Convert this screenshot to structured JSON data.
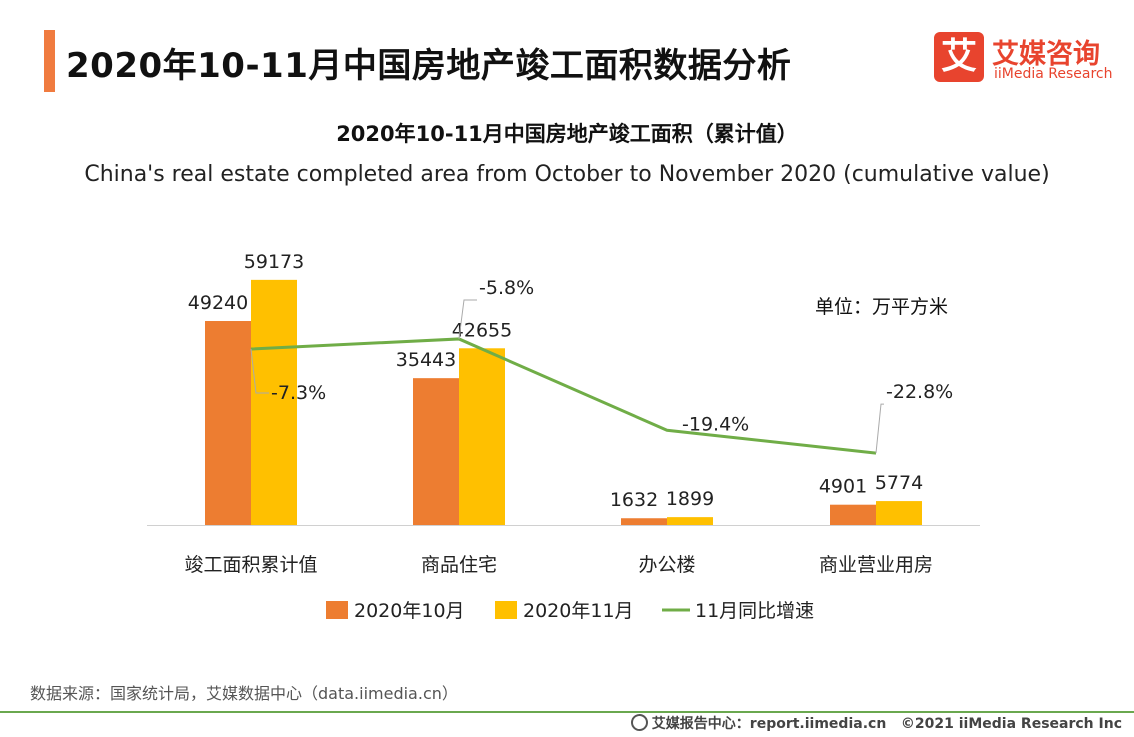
{
  "header": {
    "title": "2020年10-11月中国房地产竣工面积数据分析",
    "logo_mark": "艾",
    "logo_cn": "艾媒咨询",
    "logo_en": "iiMedia Research"
  },
  "chart_data": {
    "type": "bar",
    "title": "2020年10-11月中国房地产竣工面积（累计值）",
    "subtitle": "China's real estate completed area from October to November 2020 (cumulative value)",
    "unit": "单位：万平方米",
    "categories": [
      "竣工面积累计值",
      "商品住宅",
      "办公楼",
      "商业营业用房"
    ],
    "series": [
      {
        "name": "2020年10月",
        "kind": "bar",
        "color": "#ed7d31",
        "values": [
          49240,
          35443,
          1632,
          4901
        ]
      },
      {
        "name": "2020年11月",
        "kind": "bar",
        "color": "#ffc000",
        "values": [
          59173,
          42655,
          1899,
          5774
        ]
      },
      {
        "name": "11月同比增速",
        "kind": "line",
        "color": "#70ad47",
        "values": [
          -7.3,
          -5.8,
          -19.4,
          -22.8
        ],
        "labels": [
          "-7.3%",
          "-5.8%",
          "-19.4%",
          "-22.8%"
        ]
      }
    ],
    "ylim": [
      0,
      70000
    ],
    "growth_ylim": [
      -35,
      0
    ]
  },
  "footer": {
    "source": "数据来源：国家统计局，艾媒数据中心（data.iimedia.cn）",
    "site": "艾媒报告中心：report.iimedia.cn",
    "copyright": "©2021  iiMedia Research  Inc"
  }
}
